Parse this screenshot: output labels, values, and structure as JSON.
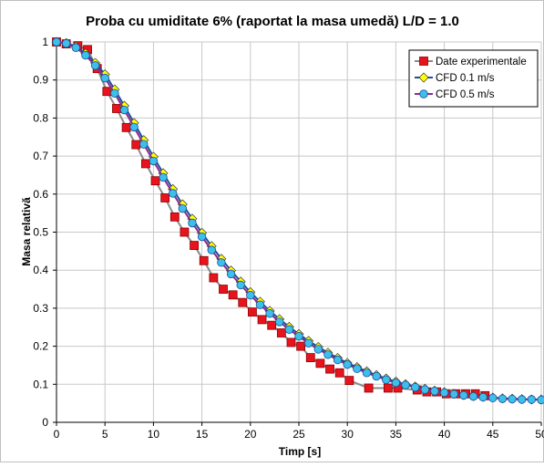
{
  "chart_data": {
    "type": "line",
    "title": "Proba cu umiditate 6% (raportat la masa umedă) L/D = 1.0",
    "xlabel": "Timp [s]",
    "ylabel": "Masa relativă",
    "xlim": [
      0,
      50
    ],
    "ylim": [
      0,
      1
    ],
    "x_ticks": [
      "0",
      "5",
      "10",
      "15",
      "20",
      "25",
      "30",
      "35",
      "40",
      "45",
      "50"
    ],
    "y_ticks": [
      "0",
      "0.1",
      "0.2",
      "0.3",
      "0.4",
      "0.5",
      "0.6",
      "0.7",
      "0.8",
      "0.9",
      "1"
    ],
    "grid": true,
    "legend_position": "top-right",
    "series": [
      {
        "name": "Date experimentale",
        "color": "#e8141d",
        "line_color": "#8a8a8a",
        "marker": "square",
        "x": [
          0,
          1,
          2.2,
          3.2,
          4.2,
          5.2,
          6.2,
          7.2,
          8.2,
          9.2,
          10.2,
          11.2,
          12.2,
          13.2,
          14.2,
          15.2,
          16.2,
          17.2,
          18.2,
          19.2,
          20.2,
          21.2,
          22.2,
          23.2,
          24.2,
          25.2,
          26.2,
          27.2,
          28.2,
          29.2,
          30.2,
          32.2,
          34.2,
          35.2,
          37.2,
          38.2,
          39.2,
          40.2,
          41.2,
          42.2,
          43.2,
          44.2
        ],
        "y": [
          1,
          0.995,
          0.99,
          0.98,
          0.93,
          0.87,
          0.825,
          0.775,
          0.73,
          0.68,
          0.635,
          0.59,
          0.54,
          0.5,
          0.465,
          0.425,
          0.38,
          0.35,
          0.335,
          0.315,
          0.29,
          0.27,
          0.255,
          0.235,
          0.21,
          0.2,
          0.17,
          0.155,
          0.14,
          0.13,
          0.11,
          0.09,
          0.09,
          0.09,
          0.085,
          0.08,
          0.08,
          0.075,
          0.075,
          0.075,
          0.075,
          0.07
        ]
      },
      {
        "name": "CFD 0.1 m/s",
        "color": "#ffff00",
        "line_color": "#1f4e9a",
        "marker": "diamond",
        "x": [
          0,
          1,
          2,
          3,
          4,
          5,
          6,
          7,
          8,
          9,
          10,
          11,
          12,
          13,
          14,
          15,
          16,
          17,
          18,
          19,
          20,
          21,
          22,
          23,
          24,
          25,
          26,
          27,
          28,
          29,
          30,
          31,
          32,
          33,
          34,
          35,
          36,
          37,
          38,
          39,
          40,
          41,
          42,
          43,
          44,
          45,
          46,
          47,
          48,
          49,
          50
        ],
        "y": [
          1,
          0.997,
          0.988,
          0.97,
          0.945,
          0.915,
          0.875,
          0.832,
          0.787,
          0.742,
          0.698,
          0.655,
          0.613,
          0.573,
          0.535,
          0.498,
          0.463,
          0.43,
          0.399,
          0.37,
          0.342,
          0.317,
          0.293,
          0.271,
          0.251,
          0.232,
          0.214,
          0.198,
          0.183,
          0.169,
          0.156,
          0.145,
          0.134,
          0.124,
          0.115,
          0.107,
          0.1,
          0.094,
          0.088,
          0.083,
          0.079,
          0.075,
          0.072,
          0.069,
          0.067,
          0.065,
          0.063,
          0.062,
          0.061,
          0.06,
          0.06
        ]
      },
      {
        "name": "CFD 0.5 m/s",
        "color": "#3cc0ea",
        "line_color": "#8a2a8f",
        "marker": "circle",
        "x": [
          0,
          1,
          2,
          3,
          4,
          5,
          6,
          7,
          8,
          9,
          10,
          11,
          12,
          13,
          14,
          15,
          16,
          17,
          18,
          19,
          20,
          21,
          22,
          23,
          24,
          25,
          26,
          27,
          28,
          29,
          30,
          31,
          32,
          33,
          34,
          35,
          36,
          37,
          38,
          39,
          40,
          41,
          42,
          43,
          44,
          45,
          46,
          47,
          48,
          49,
          50
        ],
        "y": [
          1,
          0.996,
          0.985,
          0.965,
          0.938,
          0.905,
          0.865,
          0.821,
          0.776,
          0.731,
          0.687,
          0.644,
          0.602,
          0.562,
          0.524,
          0.488,
          0.453,
          0.42,
          0.39,
          0.361,
          0.334,
          0.309,
          0.286,
          0.264,
          0.244,
          0.226,
          0.208,
          0.192,
          0.178,
          0.164,
          0.152,
          0.141,
          0.13,
          0.121,
          0.112,
          0.104,
          0.098,
          0.092,
          0.086,
          0.082,
          0.078,
          0.074,
          0.071,
          0.068,
          0.066,
          0.064,
          0.062,
          0.061,
          0.06,
          0.06,
          0.059
        ]
      }
    ]
  }
}
